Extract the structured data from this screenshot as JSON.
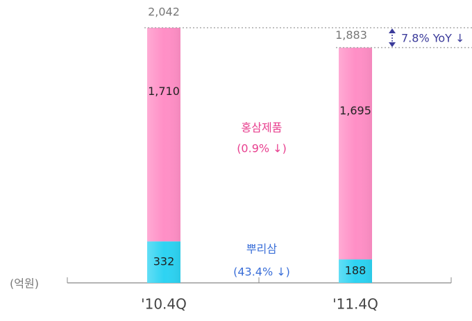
{
  "chart_data": {
    "type": "stacked_bar",
    "categories": [
      "'10.4Q",
      "'11.4Q"
    ],
    "series": [
      {
        "name": "뿌리삼",
        "color": "#2ed3f2",
        "values": [
          332,
          188
        ]
      },
      {
        "name": "홍삼제품",
        "color": "#ff8fc6",
        "values": [
          1710,
          1695
        ],
        "value_labels": [
          "1,710",
          "1,695"
        ]
      }
    ],
    "totals": {
      "values": [
        2042,
        1883
      ],
      "value_labels": [
        "2,042",
        "1,883"
      ]
    },
    "unit": "(억원)",
    "annotations": {
      "red_ginseng_change": "(0.9% ↓)",
      "root_change": "(43.4% ↓)",
      "yoy": "7.8% YoY ↓"
    }
  }
}
